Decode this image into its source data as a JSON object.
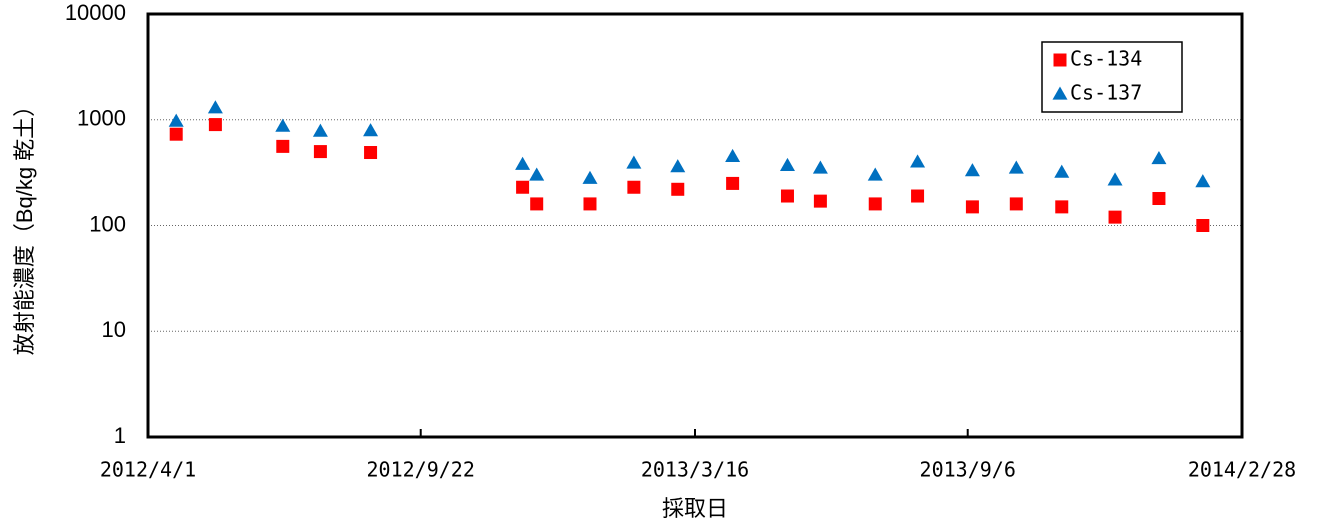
{
  "chart_data": {
    "type": "scatter",
    "y_label": "放射能濃度（Bq/kg 乾土）",
    "x_label": "採取日",
    "x": [
      "2012/4/19",
      "2012/5/14",
      "2012/6/26",
      "2012/7/20",
      "2012/8/21",
      "2012/11/26",
      "2012/12/5",
      "2013/1/8",
      "2013/2/5",
      "2013/3/5",
      "2013/4/9",
      "2013/5/14",
      "2013/6/4",
      "2013/7/9",
      "2013/8/5",
      "2013/9/9",
      "2013/10/7",
      "2013/11/5",
      "2013/12/9",
      "2014/1/6",
      "2014/2/3"
    ],
    "series": [
      {
        "name": "Cs-134",
        "color": "#ff0000",
        "marker": "square",
        "values": [
          730,
          900,
          560,
          500,
          490,
          230,
          160,
          160,
          230,
          220,
          250,
          190,
          170,
          160,
          190,
          150,
          160,
          150,
          120,
          180,
          100
        ]
      },
      {
        "name": "Cs-137",
        "color": "#0070c0",
        "marker": "triangle",
        "values": [
          970,
          1300,
          870,
          780,
          790,
          380,
          300,
          280,
          390,
          360,
          450,
          370,
          350,
          300,
          400,
          330,
          350,
          320,
          270,
          430,
          260
        ]
      }
    ],
    "xlim": [
      "2012/4/1",
      "2014/2/28"
    ],
    "xticks": [
      "2012/4/1",
      "2012/9/22",
      "2013/3/16",
      "2013/9/6",
      "2014/2/28"
    ],
    "ylim": [
      1,
      10000
    ],
    "yticks": [
      1,
      10,
      100,
      1000,
      10000
    ],
    "y_scale": "log",
    "grid": true,
    "legend": "top-right"
  }
}
